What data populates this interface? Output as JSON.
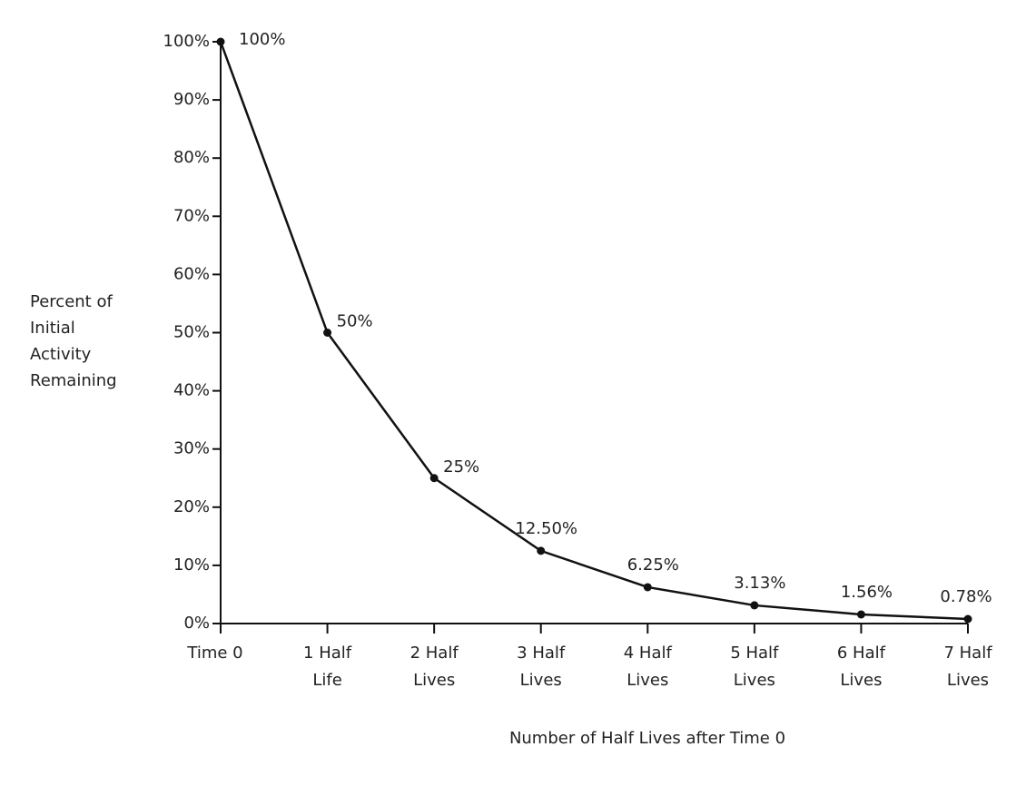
{
  "chart_data": {
    "type": "line",
    "y_label": [
      "Percent of",
      "Initial",
      "Activity",
      "Remaining"
    ],
    "x_label": "Number of Half Lives after Time 0",
    "categories": [
      [
        "Time 0"
      ],
      [
        "1 Half",
        "Life"
      ],
      [
        "2 Half",
        "Lives"
      ],
      [
        "3 Half",
        "Lives"
      ],
      [
        "4 Half",
        "Lives"
      ],
      [
        "5 Half",
        "Lives"
      ],
      [
        "6 Half",
        "Lives"
      ],
      [
        "7 Half",
        "Lives"
      ]
    ],
    "values": [
      100,
      50,
      25,
      12.5,
      6.25,
      3.13,
      1.56,
      0.78
    ],
    "value_labels": [
      "100%",
      "50%",
      "25%",
      "12.50%",
      "6.25%",
      "3.13%",
      "1.56%",
      "0.78%"
    ],
    "color": "#111111",
    "ylim": [
      0,
      100
    ],
    "yticks": [
      {
        "value": 0,
        "label": "0%"
      },
      {
        "value": 10,
        "label": "10%"
      },
      {
        "value": 20,
        "label": "20%"
      },
      {
        "value": 30,
        "label": "30%"
      },
      {
        "value": 40,
        "label": "40%"
      },
      {
        "value": 50,
        "label": "50%"
      },
      {
        "value": 60,
        "label": "60%"
      },
      {
        "value": 70,
        "label": "70%"
      },
      {
        "value": 80,
        "label": "80%"
      },
      {
        "value": 90,
        "label": "90%"
      },
      {
        "value": 100,
        "label": "100%"
      }
    ],
    "grid": false
  }
}
